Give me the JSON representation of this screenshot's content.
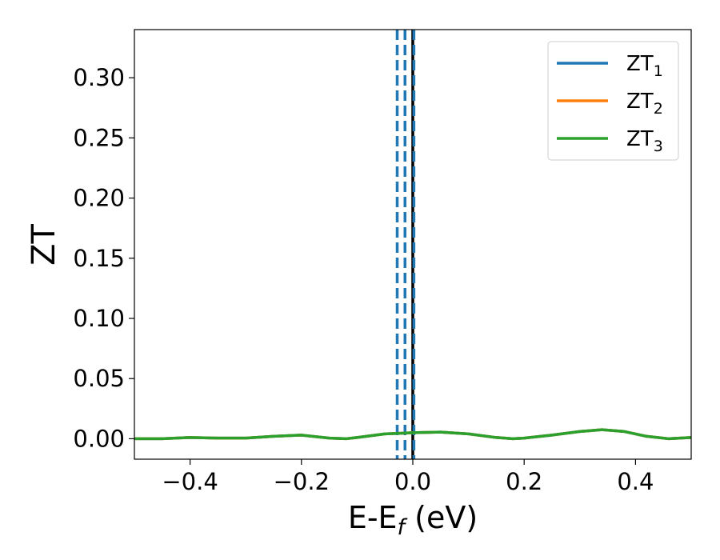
{
  "chart_data": {
    "type": "line",
    "title": "",
    "xlabel": {
      "main": "E-E",
      "sub": "f",
      "suffix": " (eV)"
    },
    "ylabel": "ZT",
    "xlim": [
      -0.5,
      0.5
    ],
    "ylim": [
      -0.017,
      0.34
    ],
    "x_ticks": [
      -0.4,
      -0.2,
      0.0,
      0.2,
      0.4
    ],
    "x_tick_labels": [
      "−0.4",
      "−0.2",
      "0.0",
      "0.2",
      "0.4"
    ],
    "y_ticks": [
      0.0,
      0.05,
      0.1,
      0.15,
      0.2,
      0.25,
      0.3
    ],
    "y_tick_labels": [
      "0.00",
      "0.05",
      "0.10",
      "0.15",
      "0.20",
      "0.25",
      "0.30"
    ],
    "grid": false,
    "legend_position": "top-right",
    "series": [
      {
        "name": "ZT",
        "sub": "1",
        "color": "#1f77b4",
        "x": [
          -0.5,
          -0.45,
          -0.4,
          -0.35,
          -0.3,
          -0.25,
          -0.2,
          -0.15,
          -0.12,
          -0.1,
          -0.05,
          0.0,
          0.05,
          0.1,
          0.15,
          0.18,
          0.2,
          0.25,
          0.3,
          0.34,
          0.38,
          0.42,
          0.46,
          0.5
        ],
        "values": [
          0.0,
          0.0,
          0.001,
          0.0005,
          0.0005,
          0.002,
          0.003,
          0.0005,
          0.0,
          0.001,
          0.004,
          0.005,
          0.0055,
          0.004,
          0.001,
          0.0,
          0.0005,
          0.003,
          0.006,
          0.0075,
          0.006,
          0.002,
          0.0,
          0.001
        ]
      },
      {
        "name": "ZT",
        "sub": "2",
        "color": "#ff7f0e",
        "x": [
          -0.5,
          -0.45,
          -0.4,
          -0.35,
          -0.3,
          -0.25,
          -0.2,
          -0.15,
          -0.12,
          -0.1,
          -0.05,
          0.0,
          0.05,
          0.1,
          0.15,
          0.18,
          0.2,
          0.25,
          0.3,
          0.34,
          0.38,
          0.42,
          0.46,
          0.5
        ],
        "values": [
          0.0,
          0.0,
          0.001,
          0.0005,
          0.0005,
          0.002,
          0.003,
          0.0005,
          0.0,
          0.001,
          0.004,
          0.005,
          0.0055,
          0.004,
          0.001,
          0.0,
          0.0005,
          0.003,
          0.006,
          0.0075,
          0.006,
          0.002,
          0.0,
          0.001
        ]
      },
      {
        "name": "ZT",
        "sub": "3",
        "color": "#2ca02c",
        "x": [
          -0.5,
          -0.45,
          -0.4,
          -0.35,
          -0.3,
          -0.25,
          -0.2,
          -0.15,
          -0.12,
          -0.1,
          -0.05,
          0.0,
          0.05,
          0.1,
          0.15,
          0.18,
          0.2,
          0.25,
          0.3,
          0.34,
          0.38,
          0.42,
          0.46,
          0.5
        ],
        "values": [
          0.0,
          0.0,
          0.001,
          0.0005,
          0.0005,
          0.002,
          0.003,
          0.0005,
          0.0,
          0.001,
          0.004,
          0.005,
          0.0055,
          0.004,
          0.001,
          0.0,
          0.0005,
          0.003,
          0.006,
          0.0075,
          0.006,
          0.002,
          0.0,
          0.001
        ]
      }
    ],
    "vertical_lines": [
      {
        "x": -0.028,
        "style": "dashed",
        "color": "#1f77b4"
      },
      {
        "x": -0.014,
        "style": "dashed",
        "color": "#1f77b4"
      },
      {
        "x": 0.0,
        "style": "solid",
        "color": "#000000"
      },
      {
        "x": 0.002,
        "style": "dashed",
        "color": "#1f77b4"
      }
    ]
  }
}
